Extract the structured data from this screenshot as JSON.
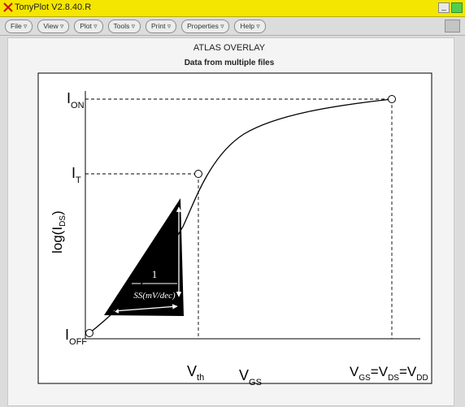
{
  "window": {
    "title": "TonyPlot V2.8.40.R",
    "icon": "x-close-icon",
    "controls": [
      "minimize-icon",
      "maximize-icon"
    ]
  },
  "menubar": {
    "items": [
      {
        "label": "File ▿",
        "name": "menu-file"
      },
      {
        "label": "View ▿",
        "name": "menu-view"
      },
      {
        "label": "Plot ▿",
        "name": "menu-plot"
      },
      {
        "label": "Tools ▿",
        "name": "menu-tools"
      },
      {
        "label": "Print ▿",
        "name": "menu-print"
      },
      {
        "label": "Properties ▿",
        "name": "menu-properties"
      },
      {
        "label": "Help ▿",
        "name": "menu-help"
      }
    ]
  },
  "plot": {
    "title": "ATLAS OVERLAY",
    "subtitle": "Data from multiple files",
    "ylabel": {
      "base": "log(I",
      "sub": "DS",
      "tail": ")"
    },
    "labels": {
      "ion": {
        "base": "I",
        "sub": "ON"
      },
      "it": {
        "base": "I",
        "sub": "T"
      },
      "ioff": {
        "base": "I",
        "sub": "OFF"
      },
      "vth": {
        "base": "V",
        "sub": "th"
      },
      "vgs": {
        "base": "V",
        "sub": "GS"
      },
      "vcond": {
        "p1": "V",
        "s1": "GS",
        "p2": "=V",
        "s2": "DS",
        "p3": "=V",
        "s3": "DD"
      }
    },
    "triangle": {
      "top": "1",
      "bottom": "SS(mV/dec)"
    },
    "colors": {
      "curve": "#000000",
      "frame": "#000000",
      "background": "#ffffff",
      "triangle": "#000000"
    }
  }
}
